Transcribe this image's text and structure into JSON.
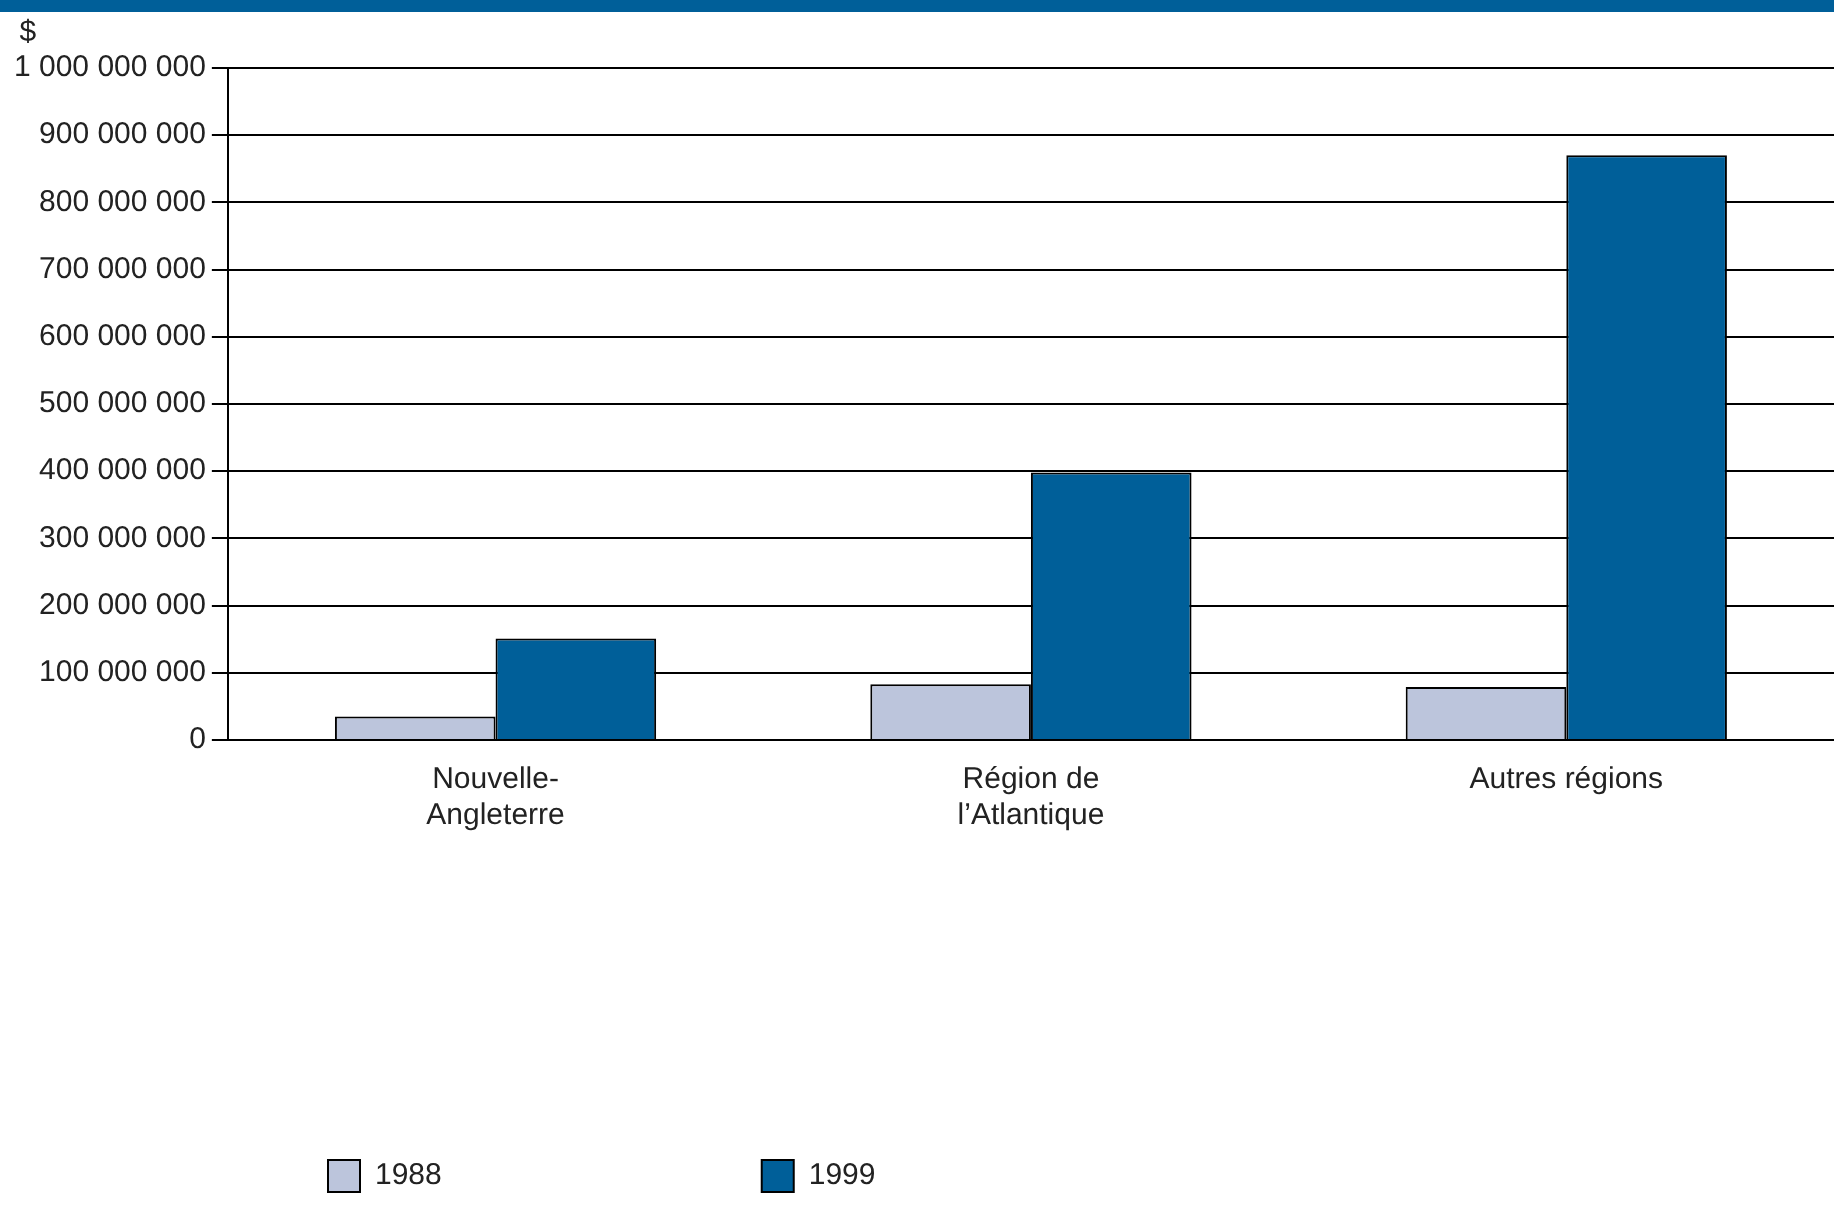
{
  "chart_data": {
    "type": "bar",
    "ylabel": "$",
    "categories": [
      "Nouvelle-Angleterre",
      "Région de l’Atlantique",
      "Autres régions"
    ],
    "series": [
      {
        "name": "1988",
        "color": "#bcc5dc",
        "values": [
          35000000,
          83000000,
          79000000
        ]
      },
      {
        "name": "1999",
        "color": "#005f99",
        "values": [
          151000000,
          398000000,
          870000000
        ]
      }
    ],
    "ylim": [
      0,
      1000000000
    ],
    "yticks": [
      0,
      {
        "value": 100000000,
        "label": "100 000 000"
      },
      {
        "value": 200000000,
        "label": "200 000 000"
      },
      {
        "value": 300000000,
        "label": "300 000 000"
      },
      {
        "value": 400000000,
        "label": "400 000 000"
      },
      {
        "value": 500000000,
        "label": "500 000 000"
      },
      {
        "value": 600000000,
        "label": "600 000 000"
      },
      {
        "value": 700000000,
        "label": "700 000 000"
      },
      {
        "value": 800000000,
        "label": "800 000 000"
      },
      {
        "value": 900000000,
        "label": "900 000 000"
      },
      {
        "value": 1000000000,
        "label": "1 000 000 000"
      }
    ],
    "grid": "y",
    "legend": "bottom"
  }
}
